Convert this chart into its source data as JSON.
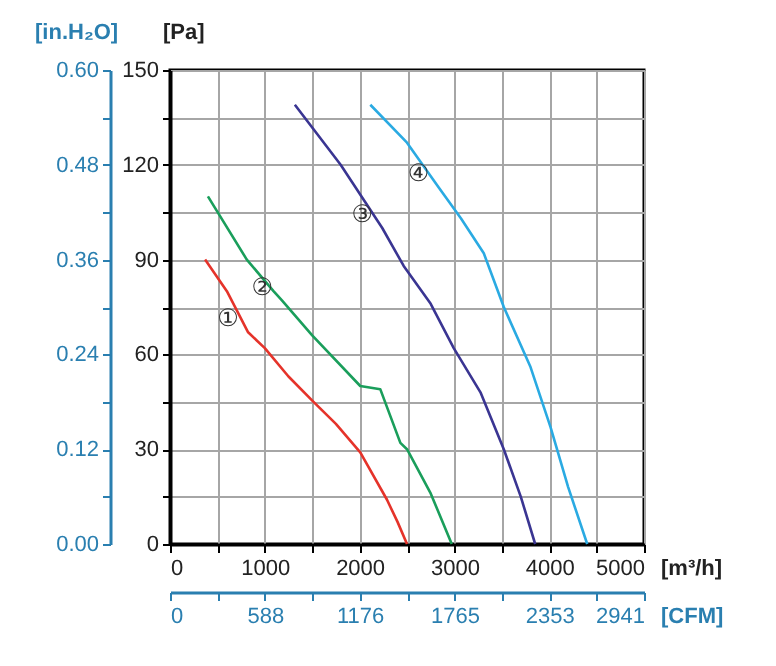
{
  "chart_data": {
    "type": "line",
    "xlabel": "[m³/h]",
    "ylabel": "[Pa]",
    "x2label": "[CFM]",
    "y2label": "[in.H₂O]",
    "xlim": [
      0,
      5000
    ],
    "ylim": [
      0,
      150
    ],
    "xticks": [
      0,
      {
        "value": 500,
        "label": null
      },
      1000,
      {
        "value": 1500,
        "label": null
      },
      2000,
      {
        "value": 2500,
        "label": null
      },
      3000,
      {
        "value": 3500,
        "label": null
      },
      4000,
      {
        "value": 4500,
        "label": null
      },
      5000
    ],
    "yticks": [
      0,
      {
        "value": 15,
        "label": null
      },
      30,
      {
        "value": 45,
        "label": null
      },
      60,
      {
        "value": 75,
        "label": null
      },
      90,
      {
        "value": 105,
        "label": null
      },
      120,
      {
        "value": 135,
        "label": null
      },
      150
    ],
    "x2lim": [
      0,
      2941
    ],
    "x2ticks": [
      0,
      {
        "value": 294,
        "label": null
      },
      588,
      {
        "value": 882,
        "label": null
      },
      1176,
      {
        "value": 1471,
        "label": null
      },
      1765,
      {
        "value": 2059,
        "label": null
      },
      2353,
      {
        "value": 2647,
        "label": null
      },
      2941
    ],
    "y2lim": [
      0,
      0.6
    ],
    "y2ticks": [
      {
        "value": 0,
        "label": "0.00"
      },
      {
        "value": 0.06,
        "label": null
      },
      {
        "value": 0.12,
        "label": "0.12"
      },
      {
        "value": 0.18,
        "label": null
      },
      {
        "value": 0.24,
        "label": "0.24"
      },
      {
        "value": 0.3,
        "label": null
      },
      {
        "value": 0.36,
        "label": "0.36"
      },
      {
        "value": 0.42,
        "label": null
      },
      {
        "value": 0.48,
        "label": "0.48"
      },
      {
        "value": 0.54,
        "label": null
      },
      {
        "value": 0.6,
        "label": "0.60"
      }
    ],
    "grid": true,
    "legend": false,
    "marker": "none",
    "line_style": "solid",
    "series": [
      {
        "color": "#e5332a",
        "x": [
          370,
          600,
          824,
          1000,
          1250,
          1514,
          1750,
          2007,
          2289,
          2400,
          2500
        ],
        "values": [
          90,
          80,
          67,
          62,
          53,
          45,
          38,
          29,
          14,
          7,
          0
        ]
      },
      {
        "color": "#1a9e5b",
        "x": [
          400,
          810,
          1092,
          1183,
          1500,
          2007,
          2218,
          2430,
          2500,
          2750,
          2972
        ],
        "values": [
          110,
          90,
          80,
          77,
          66,
          50,
          49,
          32,
          30,
          16,
          0
        ]
      },
      {
        "color": "#3a3592",
        "x": [
          1317,
          1800,
          2239,
          2465,
          2750,
          2993,
          3275,
          3521,
          3700,
          3852
        ],
        "values": [
          139,
          120,
          100,
          88,
          76,
          62,
          48,
          30,
          15,
          0
        ]
      },
      {
        "color": "#2aaae2",
        "x": [
          2113,
          2500,
          2831,
          3070,
          3310,
          3521,
          3803,
          4014,
          4200,
          4401
        ],
        "values": [
          139,
          127,
          113,
          103,
          92,
          75,
          56,
          37,
          18,
          0
        ]
      }
    ],
    "annotations": [
      {
        "text": "①",
        "x": 824,
        "y": 67
      },
      {
        "text": "②",
        "x": 1183,
        "y": 77
      },
      {
        "text": "③",
        "x": 2239,
        "y": 100
      },
      {
        "text": "④",
        "x": 2831,
        "y": 113
      }
    ]
  }
}
